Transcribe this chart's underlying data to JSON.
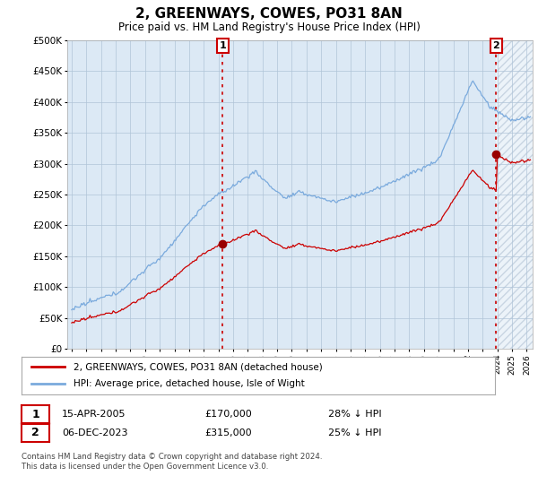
{
  "title": "2, GREENWAYS, COWES, PO31 8AN",
  "subtitle": "Price paid vs. HM Land Registry's House Price Index (HPI)",
  "ylim": [
    0,
    500000
  ],
  "yticks": [
    0,
    50000,
    100000,
    150000,
    200000,
    250000,
    300000,
    350000,
    400000,
    450000,
    500000
  ],
  "ytick_labels": [
    "£0",
    "£50K",
    "£100K",
    "£150K",
    "£200K",
    "£250K",
    "£300K",
    "£350K",
    "£400K",
    "£450K",
    "£500K"
  ],
  "hpi_color": "#7aaadd",
  "price_color": "#cc0000",
  "dashed_vline_color": "#cc0000",
  "plot_bg_color": "#dce9f5",
  "background_color": "#ffffff",
  "grid_color": "#b0c4d8",
  "legend_label_red": "2, GREENWAYS, COWES, PO31 8AN (detached house)",
  "legend_label_blue": "HPI: Average price, detached house, Isle of Wight",
  "annotation_1_date": "15-APR-2005",
  "annotation_1_price": "£170,000",
  "annotation_1_hpi": "28% ↓ HPI",
  "annotation_2_date": "06-DEC-2023",
  "annotation_2_price": "£315,000",
  "annotation_2_hpi": "25% ↓ HPI",
  "footnote": "Contains HM Land Registry data © Crown copyright and database right 2024.\nThis data is licensed under the Open Government Licence v3.0.",
  "sale1_year": 2005.29,
  "sale1_price": 170000,
  "sale2_year": 2023.92,
  "sale2_price": 315000,
  "xmin": 1995,
  "xmax": 2026
}
